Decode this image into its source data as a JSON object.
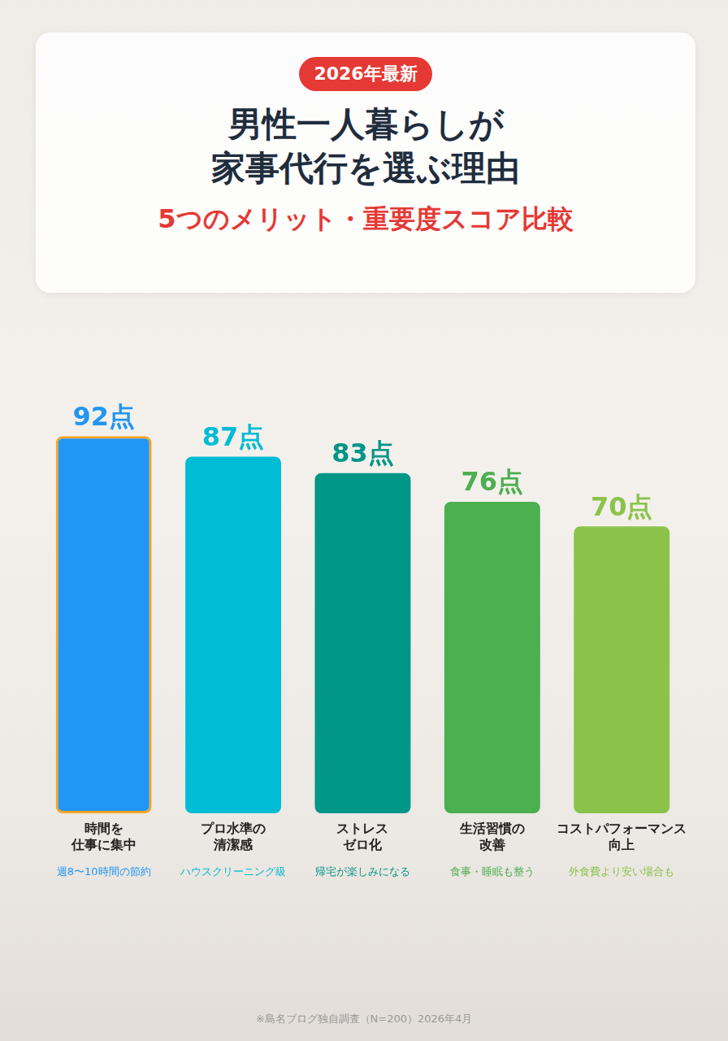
{
  "chart_data": {
    "type": "bar",
    "badge": "2026年最新",
    "title": [
      "男性一人暮らしが",
      "家事代行を選ぶ理由"
    ],
    "subtitle": "5つのメリット・重要度スコア比較",
    "categories": [
      [
        "時間を",
        "仕事に集中"
      ],
      [
        "プロ水準の",
        "清潔感"
      ],
      [
        "ストレス",
        "ゼロ化"
      ],
      [
        "生活習慣の",
        "改善"
      ],
      [
        "コストパフォーマンス",
        "向上"
      ]
    ],
    "descriptions": [
      "週8〜10時間の節約",
      "ハウスクリーニング級",
      "帰宅が楽しみになる",
      "食事・睡眠も整う",
      "外食費より安い場合も"
    ],
    "values": [
      92,
      87,
      83,
      76,
      70
    ],
    "value_labels": [
      "92点",
      "87点",
      "83点",
      "76点",
      "70点"
    ],
    "colors": [
      "#2196f3",
      "#00bcd4",
      "#009688",
      "#4caf50",
      "#8bc34a"
    ],
    "ylim": [
      0,
      100
    ],
    "grid": false,
    "data_labels": true,
    "tick_labels": "x",
    "note": "※島名ブログ独自調査（N=200）2026年4月"
  }
}
